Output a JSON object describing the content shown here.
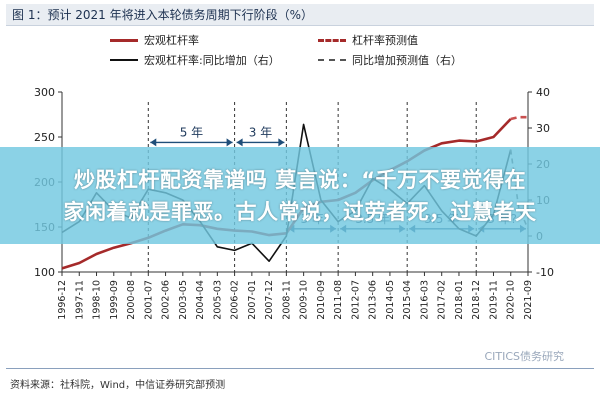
{
  "figure_title": "图 1：预计 2021 年将进入本轮债务周期下行阶段（%）",
  "banner": {
    "line1": "炒股杠杆配资靠谱吗 莫言说：“千万不要觉得在",
    "line2": "家闲着就是罪恶。古人常说，过劳者死，过慧者天"
  },
  "source": "资料来源：社科院，Wind，中信证券研究部预测",
  "watermark": "CITICS债务研究",
  "chart_data": {
    "type": "line",
    "legend_placement": "top",
    "grid": false,
    "legend": [
      {
        "name": "宏观杠杆率",
        "style": "solid",
        "color": "#a52a2a"
      },
      {
        "name": "杠杆率预测值",
        "style": "dashed",
        "color": "#c9504f"
      },
      {
        "name": "宏观杠杆率:同比增加（右）",
        "style": "solid",
        "color": "#111111"
      },
      {
        "name": "同比增加预测值（右）",
        "style": "dashed",
        "color": "#555555"
      }
    ],
    "x_ticks": [
      "1996-12",
      "1997-11",
      "1998-10",
      "1999-09",
      "2000-08",
      "2001-07",
      "2002-06",
      "2003-05",
      "2004-04",
      "2005-03",
      "2006-02",
      "2007-01",
      "2007-12",
      "2008-11",
      "2009-10",
      "2010-09",
      "2011-08",
      "2012-07",
      "2013-06",
      "2014-05",
      "2015-04",
      "2016-03",
      "2017-02",
      "2018-01",
      "2018-12",
      "2019-11",
      "2020-10",
      "2021-09"
    ],
    "y_left": {
      "ticks": [
        100,
        150,
        200,
        250,
        300
      ],
      "range": [
        100,
        300
      ]
    },
    "y_right": {
      "ticks": [
        -10,
        0,
        10,
        20,
        30,
        40
      ],
      "range": [
        -10,
        40
      ]
    },
    "annotations": [
      {
        "text": "5 年",
        "x_start": "2001-07",
        "x_end": "2006-02",
        "y_right": 26
      },
      {
        "text": "3 年",
        "x_start": "2006-02",
        "x_end": "2008-11",
        "y_right": 26
      },
      {
        "text": "3 年",
        "x_start": "2008-11",
        "x_end": "2011-08",
        "y_right": 2
      },
      {
        "text": "3.5 年",
        "x_start": "2011-08",
        "x_end": "2015-04",
        "y_right": 2
      },
      {
        "text": "3.5 年",
        "x_start": "2015-04",
        "x_end": "2018-12",
        "y_right": 2
      },
      {
        "text": "3 年?",
        "x_start": "2018-12",
        "x_end": "2021-09",
        "y_right": 2
      }
    ],
    "series": [
      {
        "name": "宏观杠杆率",
        "axis": "left",
        "points": [
          [
            "1996-12",
            104
          ],
          [
            "1997-11",
            110
          ],
          [
            "1998-10",
            120
          ],
          [
            "1999-09",
            127
          ],
          [
            "2000-08",
            132
          ],
          [
            "2001-07",
            138
          ],
          [
            "2002-06",
            146
          ],
          [
            "2003-05",
            153
          ],
          [
            "2004-04",
            152
          ],
          [
            "2005-03",
            148
          ],
          [
            "2006-02",
            146
          ],
          [
            "2007-01",
            145
          ],
          [
            "2007-12",
            141
          ],
          [
            "2008-11",
            143
          ],
          [
            "2009-10",
            171
          ],
          [
            "2010-09",
            178
          ],
          [
            "2011-08",
            180
          ],
          [
            "2012-07",
            188
          ],
          [
            "2013-06",
            202
          ],
          [
            "2014-05",
            213
          ],
          [
            "2015-04",
            223
          ],
          [
            "2016-03",
            235
          ],
          [
            "2017-02",
            243
          ],
          [
            "2018-01",
            246
          ],
          [
            "2018-12",
            245
          ],
          [
            "2019-11",
            250
          ],
          [
            "2020-10",
            270
          ]
        ]
      },
      {
        "name": "杠杆率预测值",
        "axis": "left",
        "points": [
          [
            "2020-10",
            270
          ],
          [
            "2021-03",
            272
          ],
          [
            "2021-09",
            272
          ]
        ]
      },
      {
        "name": "宏观杠杆率:同比增加（右）",
        "axis": "right",
        "points": [
          [
            "1996-12",
            1
          ],
          [
            "1997-11",
            4
          ],
          [
            "1998-10",
            12
          ],
          [
            "1999-09",
            7
          ],
          [
            "2000-08",
            5
          ],
          [
            "2001-07",
            13
          ],
          [
            "2002-06",
            12
          ],
          [
            "2003-05",
            10
          ],
          [
            "2004-04",
            4
          ],
          [
            "2005-03",
            -3
          ],
          [
            "2006-02",
            -4
          ],
          [
            "2007-01",
            -2
          ],
          [
            "2007-12",
            -7
          ],
          [
            "2008-11",
            0
          ],
          [
            "2009-10",
            31
          ],
          [
            "2010-09",
            10
          ],
          [
            "2011-08",
            4
          ],
          [
            "2012-07",
            7
          ],
          [
            "2013-06",
            16
          ],
          [
            "2014-05",
            13
          ],
          [
            "2015-04",
            9
          ],
          [
            "2016-03",
            14
          ],
          [
            "2017-02",
            7
          ],
          [
            "2018-01",
            2
          ],
          [
            "2018-12",
            0
          ],
          [
            "2019-11",
            6
          ],
          [
            "2020-10",
            24
          ]
        ]
      },
      {
        "name": "同比增加预测值（右）",
        "axis": "right",
        "points": [
          [
            "2020-10",
            24
          ],
          [
            "2021-03",
            8
          ],
          [
            "2021-09",
            2
          ]
        ]
      }
    ]
  }
}
